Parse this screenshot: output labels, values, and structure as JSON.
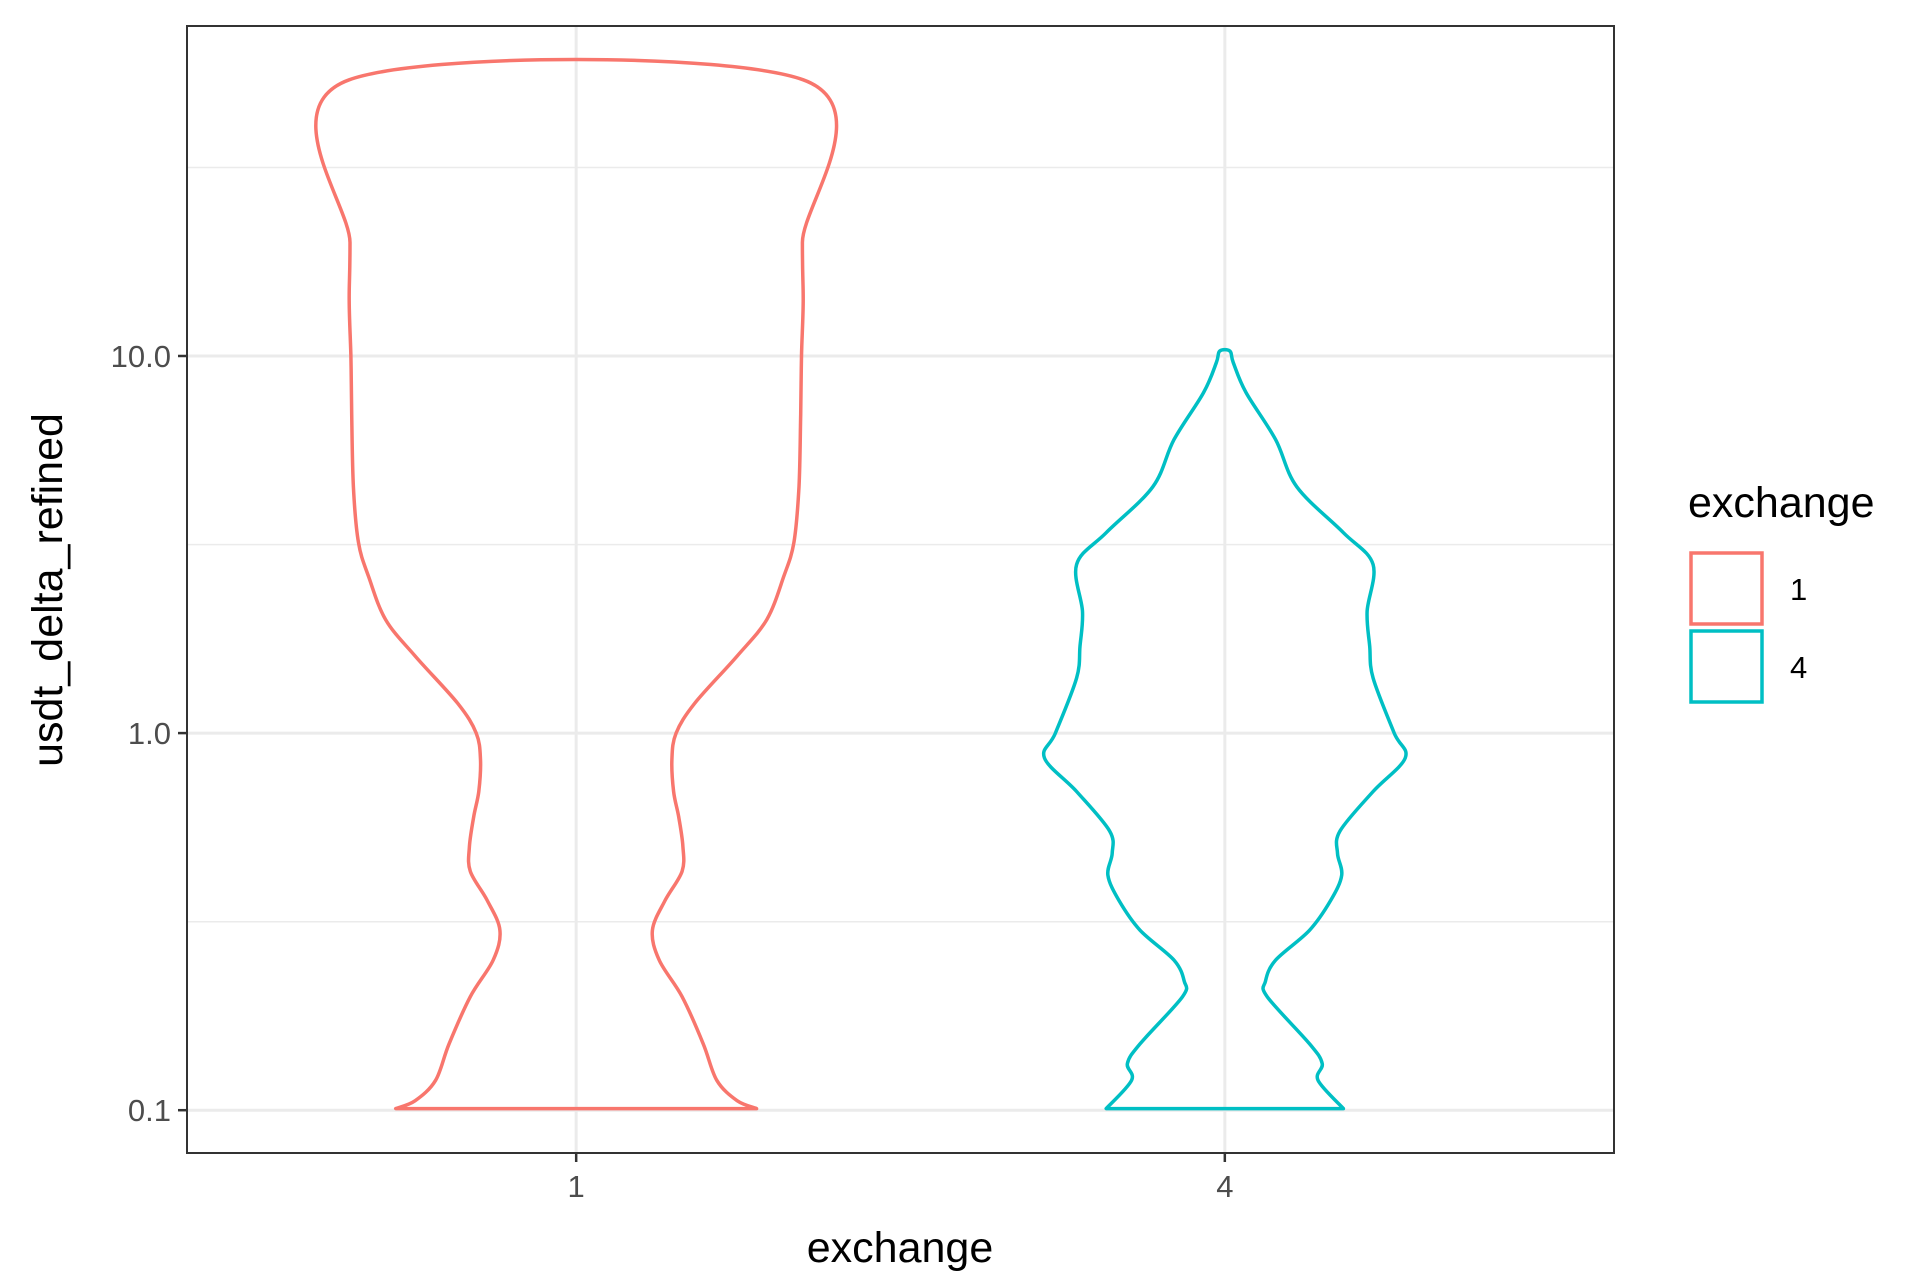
{
  "chart_data": {
    "type": "violin",
    "title": "",
    "xlabel": "exchange",
    "ylabel": "usdt_delta_refined",
    "yscale": "log10",
    "ylim": [
      0.077,
      75
    ],
    "yticks": [
      {
        "value": 0.1,
        "label": "0.1"
      },
      {
        "value": 1.0,
        "label": "1.0"
      },
      {
        "value": 10.0,
        "label": "10.0"
      }
    ],
    "ygrid_minor": [
      0.316,
      3.16,
      31.6
    ],
    "categories": [
      "1",
      "4"
    ],
    "grid": true,
    "legend": {
      "title": "exchange",
      "placement": "right",
      "entries": [
        {
          "label": "1",
          "color": "#F8766D"
        },
        {
          "label": "4",
          "color": "#00BFC4"
        }
      ]
    },
    "series": [
      {
        "category": "1",
        "color": "#F8766D",
        "y_min": 0.101,
        "y_max": 54,
        "profile": [
          [
            0.101,
            0.213
          ],
          [
            0.106,
            0.19
          ],
          [
            0.12,
            0.166
          ],
          [
            0.15,
            0.15
          ],
          [
            0.2,
            0.125
          ],
          [
            0.25,
            0.098
          ],
          [
            0.3,
            0.09
          ],
          [
            0.36,
            0.105
          ],
          [
            0.43,
            0.125
          ],
          [
            0.5,
            0.126
          ],
          [
            0.6,
            0.121
          ],
          [
            0.7,
            0.115
          ],
          [
            0.85,
            0.113
          ],
          [
            1.0,
            0.118
          ],
          [
            1.2,
            0.14
          ],
          [
            1.6,
            0.19
          ],
          [
            2.0,
            0.225
          ],
          [
            2.6,
            0.245
          ],
          [
            3.2,
            0.257
          ],
          [
            4.5,
            0.263
          ],
          [
            7,
            0.265
          ],
          [
            10,
            0.266
          ],
          [
            14,
            0.268
          ],
          [
            20,
            0.267
          ],
          [
            54,
            0.268
          ]
        ]
      },
      {
        "category": "4",
        "color": "#00BFC4",
        "y_min": 0.101,
        "y_max": 10.3,
        "profile": [
          [
            0.101,
            0.14
          ],
          [
            0.12,
            0.11
          ],
          [
            0.133,
            0.115
          ],
          [
            0.15,
            0.1
          ],
          [
            0.2,
            0.05
          ],
          [
            0.22,
            0.048
          ],
          [
            0.25,
            0.06
          ],
          [
            0.3,
            0.1
          ],
          [
            0.36,
            0.125
          ],
          [
            0.42,
            0.138
          ],
          [
            0.48,
            0.133
          ],
          [
            0.55,
            0.136
          ],
          [
            0.7,
            0.175
          ],
          [
            0.86,
            0.213
          ],
          [
            1.0,
            0.2
          ],
          [
            1.4,
            0.175
          ],
          [
            1.7,
            0.171
          ],
          [
            2.1,
            0.168
          ],
          [
            2.8,
            0.175
          ],
          [
            3.4,
            0.14
          ],
          [
            4.5,
            0.085
          ],
          [
            6,
            0.06
          ],
          [
            8,
            0.025
          ],
          [
            9.6,
            0.01
          ],
          [
            10.3,
            0.006
          ]
        ]
      }
    ]
  }
}
